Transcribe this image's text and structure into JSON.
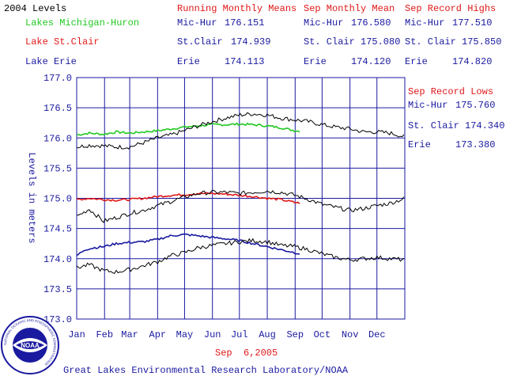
{
  "header": {
    "year_label": "2004 Levels",
    "running_title": "Running Monthly Means",
    "sep_mean_title": "Sep Monthly Mean",
    "sep_high_title": "Sep Record Highs",
    "sep_low_title": "Sep Record Lows"
  },
  "lakes": [
    {
      "name": "Lakes Michigan-Huron",
      "short": "Mic-Hur",
      "running_mean": "176.151",
      "sep_mean_name": "Mic-Hur",
      "sep_mean": "176.580",
      "sep_high_name": "Mic-Hur",
      "sep_high": "177.510",
      "sep_low_name": "Mic-Hur",
      "sep_low": "175.760",
      "color": "#22c822"
    },
    {
      "name": "Lake St.Clair",
      "short": "St.Clair",
      "running_mean": "174.939",
      "sep_mean_name": "St. Clair",
      "sep_mean": "175.080",
      "sep_high_name": "St. Clair",
      "sep_high": "175.850",
      "sep_low_name": "St. Clair",
      "sep_low": "174.340",
      "color": "#e01818"
    },
    {
      "name": "Lake Erie",
      "short": "Erie",
      "running_mean": "174.113",
      "sep_mean_name": "Erie",
      "sep_mean": "174.120",
      "sep_high_name": "Erie",
      "sep_high": "174.820",
      "sep_low_name": "Erie",
      "sep_low": "173.380",
      "color": "#1a1aa0"
    }
  ],
  "date_label": "Sep  6,2005",
  "footer": "Great Lakes Environmental Research Laboratory/NOAA",
  "logo_text": "NOAA",
  "logo_ring_text": "NATIONAL OCEANIC AND ATMOSPHERIC ADMINISTRATION",
  "chart_data": {
    "type": "line",
    "ylabel": "Levels in meters",
    "ylim": [
      173.0,
      177.0
    ],
    "yticks": [
      "177.0",
      "176.5",
      "176.0",
      "175.5",
      "175.0",
      "174.5",
      "174.0",
      "173.5",
      "173.0"
    ],
    "categories": [
      "Jan",
      "Feb",
      "Mar",
      "Apr",
      "May",
      "Jun",
      "Jul",
      "Aug",
      "Sep",
      "Oct",
      "Nov",
      "Dec"
    ],
    "grid": true,
    "x_unit": "day of year",
    "series": [
      {
        "lake": "Lakes Michigan-Huron",
        "kind": "current",
        "color": "#22c822",
        "x": [
          1,
          15,
          31,
          45,
          60,
          75,
          91,
          106,
          121,
          136,
          152,
          167,
          182,
          197,
          213,
          228,
          244,
          250
        ],
        "values": [
          176.05,
          176.08,
          176.06,
          176.1,
          176.08,
          176.1,
          176.12,
          176.15,
          176.18,
          176.2,
          176.22,
          176.22,
          176.23,
          176.22,
          176.2,
          176.17,
          176.12,
          176.11
        ]
      },
      {
        "lake": "Lakes Michigan-Huron",
        "kind": "previous",
        "color": "#000000",
        "x": [
          1,
          15,
          31,
          45,
          60,
          75,
          91,
          106,
          121,
          136,
          152,
          167,
          182,
          197,
          213,
          228,
          244,
          259,
          274,
          289,
          305,
          320,
          335,
          350,
          366
        ],
        "values": [
          175.85,
          175.88,
          175.87,
          175.85,
          175.85,
          175.92,
          176.0,
          176.05,
          176.12,
          176.2,
          176.27,
          176.33,
          176.38,
          176.4,
          176.38,
          176.33,
          176.3,
          176.27,
          176.22,
          176.18,
          176.15,
          176.1,
          176.1,
          176.08,
          176.02
        ]
      },
      {
        "lake": "Lake St.Clair",
        "kind": "current",
        "color": "#e01818",
        "x": [
          1,
          15,
          31,
          45,
          60,
          75,
          91,
          106,
          121,
          136,
          152,
          167,
          182,
          197,
          213,
          228,
          244,
          250
        ],
        "values": [
          174.98,
          175.0,
          174.98,
          174.97,
          174.98,
          175.0,
          175.03,
          175.05,
          175.06,
          175.08,
          175.08,
          175.07,
          175.05,
          175.03,
          175.0,
          174.98,
          174.93,
          174.92
        ]
      },
      {
        "lake": "Lake St.Clair",
        "kind": "previous",
        "color": "#000000",
        "x": [
          1,
          15,
          31,
          45,
          60,
          75,
          91,
          106,
          121,
          136,
          152,
          167,
          182,
          197,
          213,
          228,
          244,
          259,
          274,
          289,
          305,
          320,
          335,
          350,
          366
        ],
        "values": [
          174.7,
          174.82,
          174.62,
          174.68,
          174.75,
          174.8,
          174.88,
          174.95,
          175.02,
          175.08,
          175.1,
          175.1,
          175.08,
          175.1,
          175.12,
          175.1,
          175.05,
          174.98,
          174.9,
          174.85,
          174.8,
          174.83,
          174.88,
          174.92,
          175.0
        ]
      },
      {
        "lake": "Lake Erie",
        "kind": "current",
        "color": "#1a1aa0",
        "x": [
          1,
          10,
          20,
          31,
          45,
          60,
          75,
          91,
          106,
          121,
          136,
          152,
          167,
          182,
          197,
          213,
          228,
          244,
          250
        ],
        "values": [
          174.05,
          174.15,
          174.18,
          174.2,
          174.25,
          174.27,
          174.28,
          174.32,
          174.38,
          174.4,
          174.38,
          174.35,
          174.33,
          174.3,
          174.25,
          174.2,
          174.15,
          174.1,
          174.08
        ]
      },
      {
        "lake": "Lake Erie",
        "kind": "previous",
        "color": "#000000",
        "x": [
          1,
          15,
          31,
          45,
          60,
          75,
          91,
          106,
          121,
          136,
          152,
          167,
          182,
          197,
          213,
          228,
          244,
          259,
          274,
          289,
          305,
          320,
          335,
          350,
          366
        ],
        "values": [
          173.85,
          173.9,
          173.8,
          173.78,
          173.82,
          173.88,
          173.95,
          174.05,
          174.1,
          174.18,
          174.22,
          174.25,
          174.28,
          174.3,
          174.28,
          174.22,
          174.2,
          174.15,
          174.08,
          174.02,
          173.98,
          174.0,
          174.02,
          174.0,
          173.98
        ]
      }
    ]
  }
}
